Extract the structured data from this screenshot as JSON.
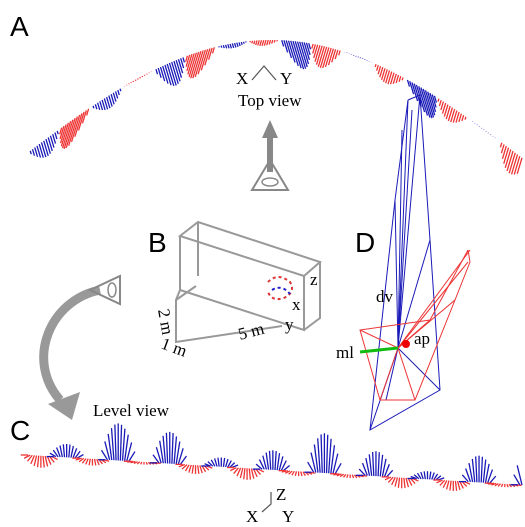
{
  "panels": {
    "a": {
      "label": "A",
      "axis_x": "X",
      "axis_y": "Y",
      "view": "Top view"
    },
    "b": {
      "label": "B",
      "axis_z": "z",
      "axis_x": "x",
      "axis_y": "y",
      "height": "2 m",
      "width": "1 m",
      "length": "5 m"
    },
    "c": {
      "label": "C",
      "view": "Level view",
      "axis_z": "Z",
      "axis_x": "X",
      "axis_y": "Y"
    },
    "d": {
      "label": "D",
      "dv": "dv",
      "ml": "ml",
      "ap": "ap"
    }
  }
}
